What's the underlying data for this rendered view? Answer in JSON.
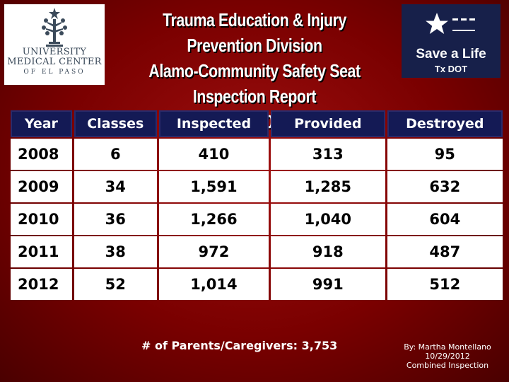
{
  "logos": {
    "umc": {
      "line1": "UNIVERSITY",
      "line2": "MEDICAL CENTER",
      "line3": "OF EL PASO",
      "emblem_icon": "tree-emblem-icon"
    },
    "txdot": {
      "slogan": "Save a Life",
      "agency": "Tx DOT",
      "flag_icon": "texas-star-flag-icon"
    }
  },
  "title": {
    "line1": "Trauma Education & Injury Prevention Division",
    "line2": "Alamo-Community Safety Seat Inspection Report",
    "line3": "2008-2012"
  },
  "table": {
    "headers": [
      "Year",
      "Classes",
      "Inspected",
      "Provided",
      "Destroyed"
    ],
    "rows": [
      [
        "2008",
        "6",
        "410",
        "313",
        "95"
      ],
      [
        "2009",
        "34",
        "1,591",
        "1,285",
        "632"
      ],
      [
        "2010",
        "36",
        "1,266",
        "1,040",
        "604"
      ],
      [
        "2011",
        "38",
        "972",
        "918",
        "487"
      ],
      [
        "2012",
        "52",
        "1,014",
        "991",
        "512"
      ]
    ]
  },
  "footer": {
    "parents": "# of Parents/Caregivers: 3,753",
    "byline": [
      "By: Martha Montellano",
      "10/29/2012",
      "Combined Inspection"
    ]
  },
  "colors": {
    "background": "#7a0000",
    "header_cell": "#141a55",
    "txdot_logo": "#17204a",
    "logo_text": "#3b4a5a"
  }
}
